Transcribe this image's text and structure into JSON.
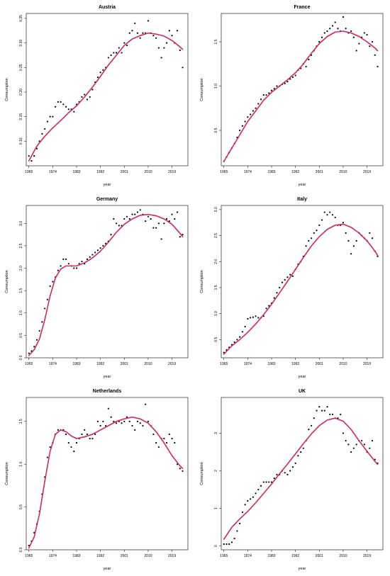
{
  "chart_data": [
    {
      "type": "scatter",
      "title": "Austria",
      "xlabel": "year",
      "ylabel": "Consumption",
      "xlim": [
        1964,
        2025
      ],
      "ylim": [
        0.05,
        0.36
      ],
      "xticks": [
        "1965",
        "1974",
        "1983",
        "1992",
        "2001",
        "2010",
        "2019"
      ],
      "yticks": [
        "0.10",
        "0.15",
        "0.20",
        "0.25",
        "0.30",
        "0.35"
      ],
      "points": {
        "x": [
          1965,
          1966,
          1967,
          1968,
          1969,
          1970,
          1971,
          1972,
          1973,
          1974,
          1975,
          1976,
          1977,
          1978,
          1979,
          1980,
          1981,
          1982,
          1983,
          1984,
          1985,
          1986,
          1987,
          1988,
          1989,
          1990,
          1991,
          1992,
          1993,
          1994,
          1995,
          1996,
          1997,
          1998,
          1999,
          2000,
          2001,
          2002,
          2003,
          2004,
          2005,
          2006,
          2007,
          2008,
          2009,
          2010,
          2011,
          2012,
          2013,
          2014,
          2015,
          2016,
          2017,
          2018,
          2019,
          2020,
          2021,
          2022,
          2023
        ],
        "y": [
          0.07,
          0.06,
          0.07,
          0.085,
          0.1,
          0.115,
          0.125,
          0.14,
          0.15,
          0.15,
          0.17,
          0.18,
          0.18,
          0.175,
          0.17,
          0.165,
          0.165,
          0.16,
          0.175,
          0.18,
          0.19,
          0.195,
          0.185,
          0.19,
          0.205,
          0.22,
          0.23,
          0.24,
          0.245,
          0.25,
          0.27,
          0.275,
          0.28,
          0.28,
          0.29,
          0.28,
          0.3,
          0.295,
          0.32,
          0.325,
          0.34,
          0.32,
          0.31,
          0.32,
          0.32,
          0.345,
          0.32,
          0.315,
          0.31,
          0.29,
          0.27,
          0.29,
          0.3,
          0.325,
          0.315,
          0.3,
          0.325,
          0.285,
          0.25
        ]
      },
      "fit": {
        "x": [
          1965,
          1968,
          1971,
          1974,
          1977,
          1980,
          1983,
          1986,
          1989,
          1992,
          1995,
          1998,
          2001,
          2004,
          2007,
          2010,
          2013,
          2016,
          2019,
          2022,
          2023
        ],
        "y": [
          0.06,
          0.09,
          0.11,
          0.127,
          0.142,
          0.158,
          0.172,
          0.19,
          0.21,
          0.232,
          0.255,
          0.275,
          0.295,
          0.308,
          0.315,
          0.32,
          0.318,
          0.314,
          0.305,
          0.292,
          0.287
        ]
      }
    },
    {
      "type": "scatter",
      "title": "France",
      "xlabel": "year",
      "ylabel": "Consumption",
      "xlim": [
        1964,
        2025
      ],
      "ylim": [
        0.1,
        1.82
      ],
      "xticks": [
        "1965",
        "1974",
        "1983",
        "1992",
        "2001",
        "2010",
        "2019"
      ],
      "yticks": [
        "0.5",
        "1.0",
        "1.5"
      ],
      "points": {
        "x": [
          1965,
          1966,
          1967,
          1968,
          1969,
          1970,
          1971,
          1972,
          1973,
          1974,
          1975,
          1976,
          1977,
          1978,
          1979,
          1980,
          1981,
          1982,
          1983,
          1984,
          1985,
          1986,
          1987,
          1988,
          1989,
          1990,
          1991,
          1992,
          1993,
          1994,
          1995,
          1996,
          1997,
          1998,
          1999,
          2000,
          2001,
          2002,
          2003,
          2004,
          2005,
          2006,
          2007,
          2008,
          2009,
          2010,
          2011,
          2012,
          2013,
          2014,
          2015,
          2016,
          2017,
          2018,
          2019,
          2020,
          2021,
          2022,
          2023
        ],
        "y": [
          0.15,
          0.2,
          0.25,
          0.3,
          0.35,
          0.42,
          0.5,
          0.55,
          0.6,
          0.65,
          0.68,
          0.72,
          0.75,
          0.8,
          0.85,
          0.9,
          0.9,
          0.92,
          0.95,
          0.97,
          1.0,
          1.0,
          1.02,
          1.03,
          1.05,
          1.08,
          1.1,
          1.12,
          1.18,
          1.2,
          1.25,
          1.22,
          1.3,
          1.35,
          1.4,
          1.45,
          1.5,
          1.55,
          1.6,
          1.62,
          1.65,
          1.68,
          1.72,
          1.65,
          1.62,
          1.78,
          1.65,
          1.6,
          1.62,
          1.55,
          1.4,
          1.48,
          1.55,
          1.6,
          1.58,
          1.45,
          1.5,
          1.35,
          1.22
        ]
      },
      "fit": {
        "x": [
          1965,
          1968,
          1971,
          1974,
          1977,
          1980,
          1983,
          1986,
          1989,
          1992,
          1995,
          1998,
          2001,
          2004,
          2007,
          2010,
          2013,
          2016,
          2019,
          2022,
          2023
        ],
        "y": [
          0.15,
          0.3,
          0.45,
          0.6,
          0.72,
          0.84,
          0.93,
          1.0,
          1.07,
          1.15,
          1.25,
          1.37,
          1.48,
          1.56,
          1.61,
          1.62,
          1.6,
          1.56,
          1.5,
          1.43,
          1.4
        ]
      }
    },
    {
      "type": "scatter",
      "title": "Germany",
      "xlabel": "year",
      "ylabel": "Consumption",
      "xlim": [
        1964,
        2025
      ],
      "ylim": [
        0,
        3.4
      ],
      "xticks": [
        "1965",
        "1974",
        "1983",
        "1992",
        "2001",
        "2010",
        "2019"
      ],
      "yticks": [
        "0.0",
        "0.5",
        "1.0",
        "1.5",
        "2.0",
        "2.5",
        "3.0"
      ],
      "points": {
        "x": [
          1965,
          1966,
          1967,
          1968,
          1969,
          1970,
          1971,
          1972,
          1973,
          1974,
          1975,
          1976,
          1977,
          1978,
          1979,
          1980,
          1981,
          1982,
          1983,
          1984,
          1985,
          1986,
          1987,
          1988,
          1989,
          1990,
          1991,
          1992,
          1993,
          1994,
          1995,
          1996,
          1997,
          1998,
          1999,
          2000,
          2001,
          2002,
          2003,
          2004,
          2005,
          2006,
          2007,
          2008,
          2009,
          2010,
          2011,
          2012,
          2013,
          2014,
          2015,
          2016,
          2017,
          2018,
          2019,
          2020,
          2021,
          2022,
          2023
        ],
        "y": [
          0.1,
          0.15,
          0.25,
          0.4,
          0.6,
          0.8,
          1.1,
          1.3,
          1.6,
          1.7,
          1.8,
          1.95,
          2.05,
          2.2,
          2.2,
          2.1,
          2.05,
          2.0,
          2.0,
          2.1,
          2.15,
          2.1,
          2.2,
          2.25,
          2.3,
          2.35,
          2.4,
          2.45,
          2.5,
          2.55,
          2.6,
          2.75,
          3.1,
          3.0,
          2.95,
          2.95,
          3.1,
          3.15,
          3.1,
          3.2,
          3.2,
          3.25,
          3.3,
          3.2,
          3.05,
          3.15,
          3.1,
          2.9,
          2.9,
          3.0,
          2.65,
          3.0,
          3.1,
          3.05,
          3.2,
          3.1,
          3.25,
          2.7,
          2.75
        ]
      },
      "fit": {
        "x": [
          1965,
          1967,
          1969,
          1971,
          1973,
          1975,
          1977,
          1979,
          1981,
          1983,
          1986,
          1989,
          1992,
          1995,
          1998,
          2001,
          2004,
          2007,
          2010,
          2013,
          2016,
          2019,
          2022,
          2023
        ],
        "y": [
          0.05,
          0.18,
          0.42,
          0.85,
          1.38,
          1.78,
          1.98,
          2.05,
          2.05,
          2.05,
          2.12,
          2.23,
          2.38,
          2.58,
          2.8,
          2.98,
          3.1,
          3.18,
          3.2,
          3.17,
          3.1,
          2.98,
          2.78,
          2.7
        ]
      }
    },
    {
      "type": "scatter",
      "title": "Italy",
      "xlabel": "year",
      "ylabel": "Consumption",
      "xlim": [
        1964,
        2025
      ],
      "ylim": [
        0.15,
        3.08
      ],
      "xticks": [
        "1965",
        "1974",
        "1983",
        "1992",
        "2001",
        "2010",
        "2019"
      ],
      "yticks": [
        "0.5",
        "1.0",
        "1.5",
        "2.0",
        "2.5",
        "3.0"
      ],
      "points": {
        "x": [
          1965,
          1966,
          1967,
          1968,
          1969,
          1970,
          1971,
          1972,
          1973,
          1974,
          1975,
          1976,
          1977,
          1978,
          1979,
          1980,
          1981,
          1982,
          1983,
          1984,
          1985,
          1986,
          1987,
          1988,
          1989,
          1990,
          1991,
          1992,
          1993,
          1994,
          1995,
          1996,
          1997,
          1998,
          1999,
          2000,
          2001,
          2002,
          2003,
          2004,
          2005,
          2006,
          2007,
          2008,
          2009,
          2010,
          2011,
          2012,
          2013,
          2014,
          2015,
          2016,
          2017,
          2018,
          2019,
          2020,
          2021,
          2022,
          2023
        ],
        "y": [
          0.25,
          0.3,
          0.35,
          0.4,
          0.45,
          0.5,
          0.55,
          0.65,
          0.75,
          0.9,
          0.92,
          0.93,
          0.95,
          0.92,
          0.92,
          0.95,
          1.1,
          1.15,
          1.2,
          1.3,
          1.4,
          1.5,
          1.6,
          1.65,
          1.7,
          1.75,
          1.72,
          1.85,
          1.95,
          2.0,
          2.1,
          2.3,
          2.4,
          2.45,
          2.55,
          2.6,
          2.7,
          2.8,
          2.95,
          2.9,
          2.95,
          2.9,
          2.85,
          2.7,
          2.7,
          2.75,
          2.55,
          2.4,
          2.15,
          2.3,
          2.4,
          2.55,
          2.5,
          2.45,
          2.4,
          2.55,
          2.45,
          2.2,
          2.1
        ]
      },
      "fit": {
        "x": [
          1965,
          1968,
          1971,
          1974,
          1977,
          1980,
          1983,
          1986,
          1989,
          1992,
          1995,
          1998,
          2001,
          2004,
          2007,
          2010,
          2013,
          2016,
          2019,
          2022,
          2023
        ],
        "y": [
          0.22,
          0.38,
          0.5,
          0.64,
          0.8,
          0.98,
          1.18,
          1.4,
          1.62,
          1.85,
          2.08,
          2.3,
          2.48,
          2.62,
          2.7,
          2.72,
          2.66,
          2.55,
          2.4,
          2.2,
          2.12
        ]
      }
    },
    {
      "type": "scatter",
      "title": "Netherlands",
      "xlabel": "year",
      "ylabel": "Consumption",
      "xlim": [
        1964,
        2025
      ],
      "ylim": [
        0,
        1.78
      ],
      "xticks": [
        "1965",
        "1974",
        "1983",
        "1992",
        "2001",
        "2010",
        "2019"
      ],
      "yticks": [
        "0.0",
        "0.5",
        "1.0",
        "1.5"
      ],
      "points": {
        "x": [
          1965,
          1966,
          1967,
          1968,
          1969,
          1970,
          1971,
          1972,
          1973,
          1974,
          1975,
          1976,
          1977,
          1978,
          1979,
          1980,
          1981,
          1982,
          1983,
          1984,
          1985,
          1986,
          1987,
          1988,
          1989,
          1990,
          1991,
          1992,
          1993,
          1994,
          1995,
          1996,
          1997,
          1998,
          1999,
          2000,
          2001,
          2002,
          2003,
          2004,
          2005,
          2006,
          2007,
          2008,
          2009,
          2010,
          2011,
          2012,
          2013,
          2014,
          2015,
          2016,
          2017,
          2018,
          2019,
          2020,
          2021,
          2022,
          2023
        ],
        "y": [
          0.05,
          0.1,
          0.2,
          0.3,
          0.45,
          0.65,
          0.85,
          1.08,
          1.2,
          1.25,
          1.35,
          1.4,
          1.4,
          1.4,
          1.35,
          1.25,
          1.2,
          1.15,
          1.25,
          1.3,
          1.35,
          1.4,
          1.35,
          1.3,
          1.3,
          1.35,
          1.5,
          1.45,
          1.5,
          1.45,
          1.65,
          1.55,
          1.5,
          1.48,
          1.5,
          1.48,
          1.5,
          1.55,
          1.5,
          1.45,
          1.4,
          1.5,
          1.48,
          1.45,
          1.7,
          1.5,
          1.45,
          1.35,
          1.25,
          1.2,
          1.3,
          1.3,
          1.25,
          1.35,
          1.3,
          1.25,
          1.0,
          0.95,
          0.92
        ]
      },
      "fit": {
        "x": [
          1965,
          1967,
          1969,
          1971,
          1973,
          1975,
          1977,
          1979,
          1981,
          1983,
          1986,
          1989,
          1992,
          1995,
          1998,
          2001,
          2004,
          2007,
          2010,
          2013,
          2016,
          2019,
          2022,
          2023
        ],
        "y": [
          0.02,
          0.15,
          0.42,
          0.8,
          1.15,
          1.35,
          1.4,
          1.38,
          1.33,
          1.3,
          1.32,
          1.35,
          1.4,
          1.45,
          1.5,
          1.53,
          1.55,
          1.53,
          1.48,
          1.38,
          1.25,
          1.1,
          0.98,
          0.95
        ]
      }
    },
    {
      "type": "scatter",
      "title": "UK",
      "xlabel": "year",
      "ylabel": "Consumption",
      "xlim": [
        1964,
        2025
      ],
      "ylim": [
        -0.1,
        3.95
      ],
      "xticks": [
        "1965",
        "1974",
        "1983",
        "1992",
        "2001",
        "2010",
        "2019"
      ],
      "yticks": [
        "0",
        "1",
        "2",
        "3"
      ],
      "points": {
        "x": [
          1965,
          1966,
          1967,
          1968,
          1969,
          1970,
          1971,
          1972,
          1973,
          1974,
          1975,
          1976,
          1977,
          1978,
          1979,
          1980,
          1981,
          1982,
          1983,
          1984,
          1985,
          1986,
          1987,
          1988,
          1989,
          1990,
          1991,
          1992,
          1993,
          1994,
          1995,
          1996,
          1997,
          1998,
          1999,
          2000,
          2001,
          2002,
          2003,
          2004,
          2005,
          2006,
          2007,
          2008,
          2009,
          2010,
          2011,
          2012,
          2013,
          2014,
          2015,
          2016,
          2017,
          2018,
          2019,
          2020,
          2021,
          2022,
          2023
        ],
        "y": [
          0.05,
          0.05,
          0.05,
          0.1,
          0.2,
          0.4,
          0.6,
          0.9,
          1.1,
          1.2,
          1.25,
          1.3,
          1.4,
          1.5,
          1.6,
          1.7,
          1.7,
          1.7,
          1.7,
          1.8,
          1.9,
          1.9,
          2.0,
          1.95,
          1.9,
          2.0,
          2.1,
          2.2,
          2.4,
          2.5,
          2.6,
          2.8,
          3.1,
          3.2,
          3.4,
          3.6,
          3.7,
          3.6,
          3.6,
          3.7,
          3.5,
          3.5,
          3.4,
          3.4,
          3.5,
          3.0,
          2.8,
          2.7,
          2.5,
          2.6,
          2.7,
          2.8,
          2.8,
          2.7,
          2.5,
          2.6,
          2.8,
          2.3,
          2.2
        ]
      },
      "fit": {
        "x": [
          1965,
          1968,
          1971,
          1974,
          1977,
          1980,
          1983,
          1986,
          1989,
          1992,
          1995,
          1998,
          2001,
          2004,
          2007,
          2010,
          2013,
          2016,
          2019,
          2022,
          2023
        ],
        "y": [
          0.18,
          0.5,
          0.72,
          0.92,
          1.15,
          1.4,
          1.65,
          1.92,
          2.18,
          2.45,
          2.72,
          2.98,
          3.2,
          3.35,
          3.4,
          3.32,
          3.1,
          2.8,
          2.52,
          2.25,
          2.17
        ]
      }
    }
  ]
}
